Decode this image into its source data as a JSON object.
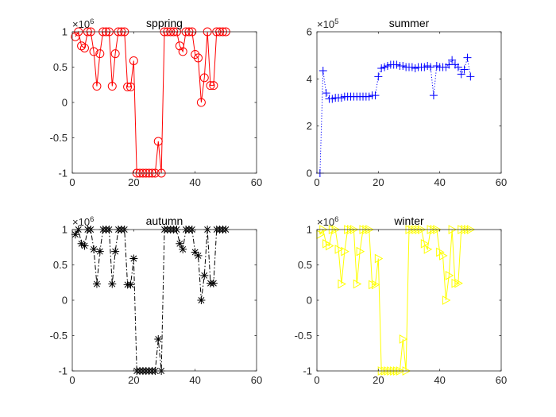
{
  "chart_data": [
    {
      "id": "spring",
      "type": "line",
      "title": "sppring",
      "xlabel": "",
      "ylabel": "",
      "exponent": {
        "base": "×10",
        "power": "6"
      },
      "xlim": [
        0,
        60
      ],
      "ylim": [
        -1,
        1
      ],
      "xticks": [
        0,
        20,
        40,
        60
      ],
      "yticks": [
        -1,
        -0.5,
        0,
        0.5,
        1
      ],
      "xtick_labels": [
        "0",
        "20",
        "40",
        "60"
      ],
      "ytick_labels": [
        "-1",
        "-0.5",
        "0",
        "0.5",
        "1"
      ],
      "grid": false,
      "color": "#ff0000",
      "line_style": "solid",
      "marker": "circle",
      "series": [
        {
          "x": [
            1,
            2,
            3,
            4,
            5,
            6,
            7,
            8,
            9,
            10,
            11,
            12,
            13,
            14,
            15,
            16,
            17,
            18,
            19,
            20,
            21,
            22,
            23,
            24,
            25,
            26,
            27,
            28,
            29,
            30,
            31,
            32,
            33,
            34,
            35,
            36,
            37,
            38,
            39,
            40,
            41,
            42,
            43,
            44,
            45,
            46,
            47,
            48,
            49,
            50
          ],
          "values": [
            0.93,
            1,
            0.8,
            0.77,
            1,
            1,
            0.72,
            0.23,
            0.69,
            1,
            1,
            1,
            0.23,
            0.69,
            1,
            1,
            1,
            0.22,
            0.22,
            0.59,
            -1,
            -1,
            -1,
            -1,
            -1,
            -1,
            -1,
            -0.55,
            -1,
            1,
            1,
            1,
            1,
            1,
            0.8,
            0.72,
            1,
            1,
            1,
            0.68,
            0.63,
            0.0,
            0.35,
            1,
            0.24,
            0.24,
            1,
            1,
            1,
            1
          ]
        }
      ]
    },
    {
      "id": "summer",
      "type": "line",
      "title": "summer",
      "xlabel": "",
      "ylabel": "",
      "exponent": {
        "base": "×10",
        "power": "5"
      },
      "xlim": [
        0,
        60
      ],
      "ylim": [
        0,
        6
      ],
      "xticks": [
        0,
        20,
        40,
        60
      ],
      "yticks": [
        0,
        2,
        4,
        6
      ],
      "xtick_labels": [
        "0",
        "20",
        "40",
        "60"
      ],
      "ytick_labels": [
        "0",
        "2",
        "4",
        "6"
      ],
      "grid": false,
      "color": "#0000ff",
      "line_style": "dotted",
      "marker": "plus",
      "series": [
        {
          "x": [
            1,
            2,
            3,
            4,
            5,
            6,
            7,
            8,
            9,
            10,
            11,
            12,
            13,
            14,
            15,
            16,
            17,
            18,
            19,
            20,
            21,
            22,
            23,
            24,
            25,
            26,
            27,
            28,
            29,
            30,
            31,
            32,
            33,
            34,
            35,
            36,
            37,
            38,
            39,
            40,
            41,
            42,
            43,
            44,
            45,
            46,
            47,
            48,
            49,
            50
          ],
          "values": [
            0,
            4.35,
            3.4,
            3.15,
            3.15,
            3.2,
            3.2,
            3.2,
            3.25,
            3.25,
            3.25,
            3.25,
            3.25,
            3.25,
            3.25,
            3.25,
            3.25,
            3.3,
            3.3,
            4.1,
            4.45,
            4.5,
            4.55,
            4.6,
            4.6,
            4.6,
            4.55,
            4.55,
            4.5,
            4.5,
            4.5,
            4.45,
            4.5,
            4.5,
            4.5,
            4.55,
            4.5,
            3.3,
            4.55,
            4.5,
            4.5,
            4.5,
            4.6,
            4.8,
            4.6,
            4.5,
            4.2,
            4.4,
            4.9,
            4.1
          ]
        }
      ]
    },
    {
      "id": "autumn",
      "type": "line",
      "title": "autumn",
      "xlabel": "",
      "ylabel": "",
      "exponent": {
        "base": "×10",
        "power": "6"
      },
      "xlim": [
        0,
        60
      ],
      "ylim": [
        -1,
        1
      ],
      "xticks": [
        0,
        20,
        40,
        60
      ],
      "yticks": [
        -1,
        -0.5,
        0,
        0.5,
        1
      ],
      "xtick_labels": [
        "0",
        "20",
        "40",
        "60"
      ],
      "ytick_labels": [
        "-1",
        "-0.5",
        "0",
        "0.5",
        "1"
      ],
      "grid": false,
      "color": "#000000",
      "line_style": "dashdot",
      "marker": "asterisk",
      "series": [
        {
          "x": [
            1,
            2,
            3,
            4,
            5,
            6,
            7,
            8,
            9,
            10,
            11,
            12,
            13,
            14,
            15,
            16,
            17,
            18,
            19,
            20,
            21,
            22,
            23,
            24,
            25,
            26,
            27,
            28,
            29,
            30,
            31,
            32,
            33,
            34,
            35,
            36,
            37,
            38,
            39,
            40,
            41,
            42,
            43,
            44,
            45,
            46,
            47,
            48,
            49,
            50
          ],
          "values": [
            0.93,
            1,
            0.8,
            0.77,
            1,
            1,
            0.72,
            0.23,
            0.69,
            1,
            1,
            1,
            0.23,
            0.69,
            1,
            1,
            1,
            0.22,
            0.22,
            0.59,
            -1,
            -1,
            -1,
            -1,
            -1,
            -1,
            -1,
            -0.55,
            -1,
            1,
            1,
            1,
            1,
            1,
            0.8,
            0.72,
            1,
            1,
            1,
            0.68,
            0.63,
            0.0,
            0.35,
            1,
            0.24,
            0.24,
            1,
            1,
            1,
            1
          ]
        }
      ]
    },
    {
      "id": "winter",
      "type": "line",
      "title": "winter",
      "xlabel": "",
      "ylabel": "",
      "exponent": {
        "base": "×10",
        "power": "6"
      },
      "xlim": [
        0,
        60
      ],
      "ylim": [
        -1,
        1
      ],
      "xticks": [
        0,
        20,
        40,
        60
      ],
      "yticks": [
        -1,
        -0.5,
        0,
        0.5,
        1
      ],
      "xtick_labels": [
        "0",
        "20",
        "40",
        "60"
      ],
      "ytick_labels": [
        "-1",
        "-0.5",
        "0",
        "0.5",
        "1"
      ],
      "grid": false,
      "color": "#ffff00",
      "line_style": "solid",
      "marker": "triangle-right",
      "series": [
        {
          "x": [
            1,
            2,
            3,
            4,
            5,
            6,
            7,
            8,
            9,
            10,
            11,
            12,
            13,
            14,
            15,
            16,
            17,
            18,
            19,
            20,
            21,
            22,
            23,
            24,
            25,
            26,
            27,
            28,
            29,
            30,
            31,
            32,
            33,
            34,
            35,
            36,
            37,
            38,
            39,
            40,
            41,
            42,
            43,
            44,
            45,
            46,
            47,
            48,
            49,
            50
          ],
          "values": [
            0.93,
            1,
            0.8,
            0.77,
            1,
            1,
            0.72,
            0.23,
            0.69,
            1,
            1,
            1,
            0.23,
            0.69,
            1,
            1,
            1,
            0.22,
            0.22,
            0.59,
            -1,
            -1,
            -1,
            -1,
            -1,
            -1,
            -1,
            -0.55,
            -1,
            1,
            1,
            1,
            1,
            1,
            0.8,
            0.72,
            1,
            1,
            1,
            0.68,
            0.63,
            0.0,
            0.35,
            1,
            0.24,
            0.24,
            1,
            1,
            1,
            1
          ]
        }
      ]
    }
  ]
}
